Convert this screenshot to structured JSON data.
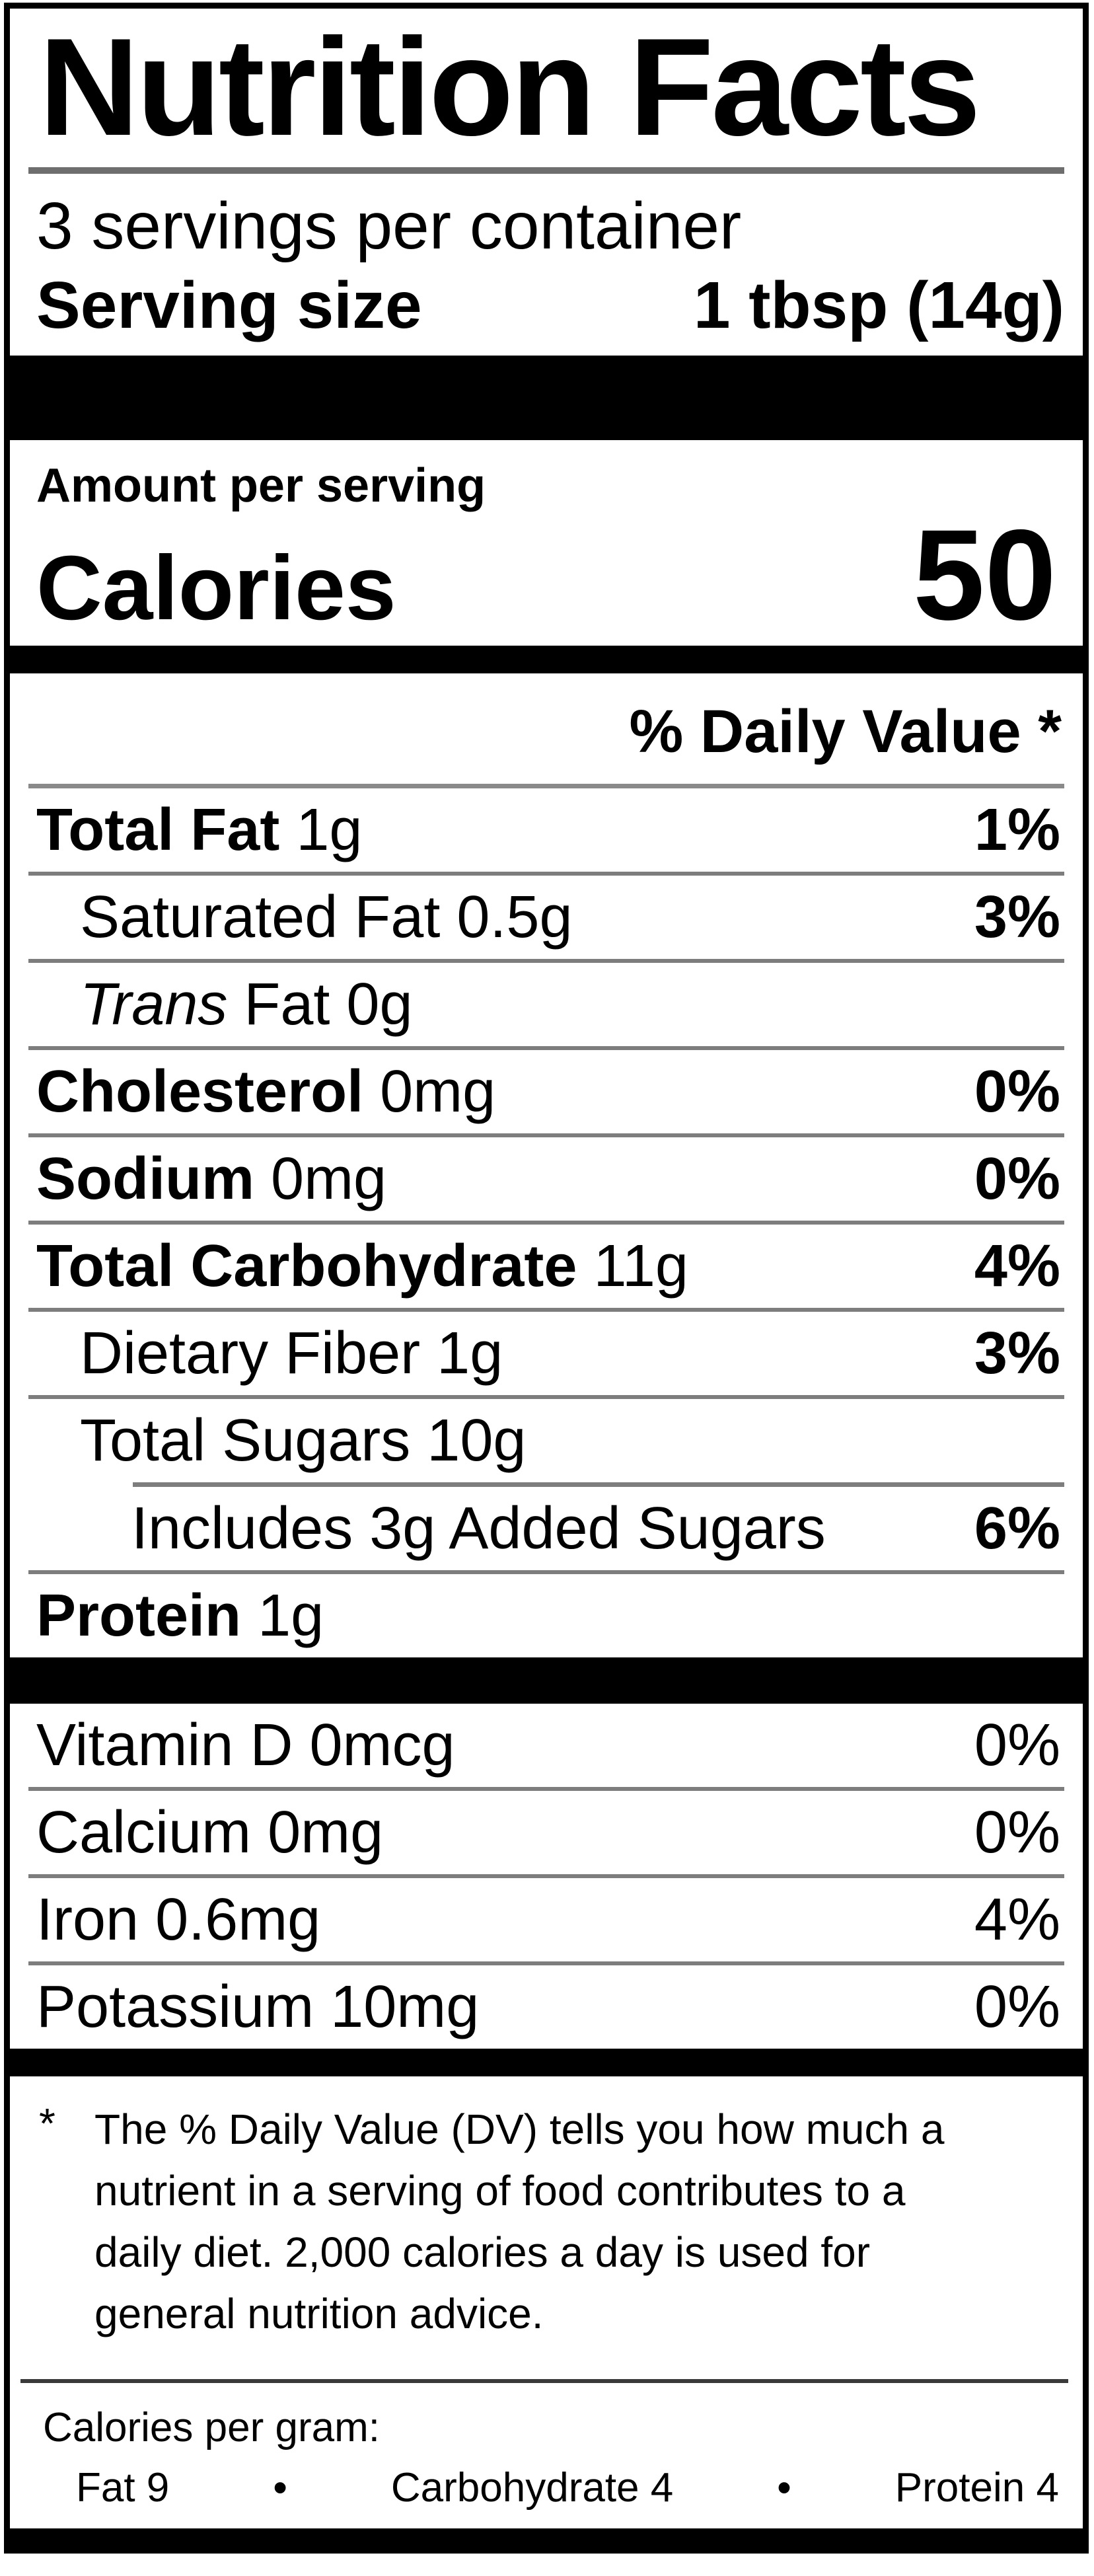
{
  "label": {
    "title": "Nutrition Facts",
    "servings_per_container": "3 servings per container",
    "serving_size": {
      "label": "Serving size",
      "value": "1 tbsp (14g)"
    },
    "amount_per_serving": "Amount per serving",
    "calories": {
      "label": "Calories",
      "value": "50"
    },
    "daily_value_header": "% Daily Value *",
    "nutrients": [
      {
        "name": "Total Fat",
        "amount": "1g",
        "dv": "1%"
      },
      {
        "name": "Saturated Fat",
        "amount": "0.5g",
        "dv": "3%"
      },
      {
        "name": "Trans",
        "amount": "Fat 0g",
        "dv": ""
      },
      {
        "name": "Cholesterol",
        "amount": "0mg",
        "dv": "0%"
      },
      {
        "name": "Sodium",
        "amount": "0mg",
        "dv": "0%"
      },
      {
        "name": "Total Carbohydrate",
        "amount": "11g",
        "dv": "4%"
      },
      {
        "name": "Dietary Fiber",
        "amount": "1g",
        "dv": "3%"
      },
      {
        "name": "Total Sugars",
        "amount": "10g",
        "dv": ""
      },
      {
        "name": "Includes 3g Added Sugars",
        "amount": "",
        "dv": "6%"
      },
      {
        "name": "Protein",
        "amount": "1g",
        "dv": ""
      }
    ],
    "vitamins": [
      {
        "name": "Vitamin D 0mcg",
        "dv": "0%"
      },
      {
        "name": "Calcium 0mg",
        "dv": "0%"
      },
      {
        "name": "Iron 0.6mg",
        "dv": "4%"
      },
      {
        "name": "Potassium 10mg",
        "dv": "0%"
      }
    ],
    "footnote": {
      "marker": "*",
      "text": "The % Daily Value (DV) tells you how much a nutrient in a serving of food contributes to a daily diet. 2,000 calories a day is used for general nutrition advice."
    },
    "calories_per_gram": {
      "label": "Calories per gram:",
      "bullet": "•",
      "items": [
        "Fat 9",
        "Carbohydrate 4",
        "Protein 4"
      ]
    },
    "colors": {
      "ink": "#000000",
      "rule_gray": "#7d7d7d"
    }
  }
}
